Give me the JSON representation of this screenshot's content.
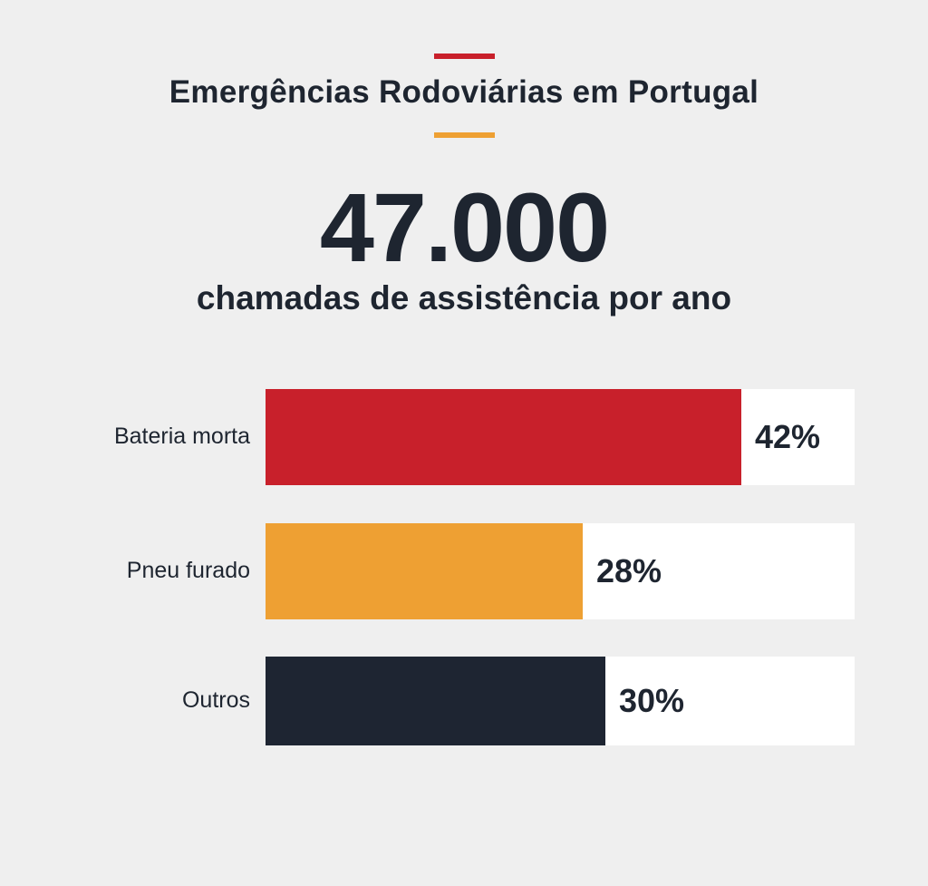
{
  "header": {
    "title": "Emergências Rodoviárias em Portugal",
    "accent_top_color": "#c8202b",
    "accent_bottom_color": "#eea033"
  },
  "headline": {
    "number": "47.000",
    "caption": "chamadas de assistência por ano"
  },
  "chart_data": {
    "type": "bar",
    "orientation": "horizontal",
    "categories": [
      "Bateria morta",
      "Pneu furado",
      "Outros"
    ],
    "values": [
      42,
      28,
      30
    ],
    "value_labels": [
      "42%",
      "28%",
      "30%"
    ],
    "colors": [
      "#c8202b",
      "#eea033",
      "#1e2532"
    ],
    "xlim": [
      0,
      52
    ],
    "grid": false,
    "unit": "%"
  }
}
